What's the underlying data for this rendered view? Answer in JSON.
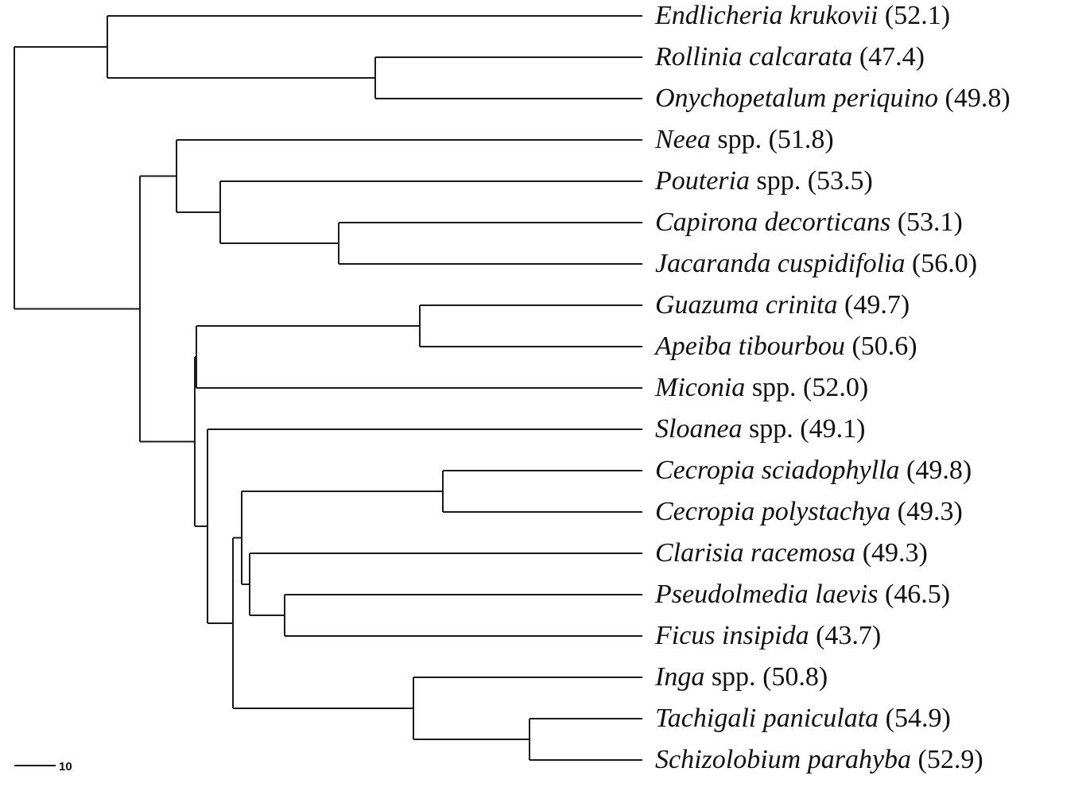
{
  "diagram": {
    "type": "dendrogram",
    "leaves": [
      {
        "id": "endlicheria",
        "name": "Endlicheria krukovii",
        "qualifier": "",
        "value": "(52.1)"
      },
      {
        "id": "rollinia",
        "name": "Rollinia calcarata",
        "qualifier": "",
        "value": "(47.4)"
      },
      {
        "id": "onychopetalum",
        "name": "Onychopetalum periquino",
        "qualifier": "",
        "value": "(49.8)"
      },
      {
        "id": "neea",
        "name": "Neea",
        "qualifier": "spp.",
        "value": "(51.8)"
      },
      {
        "id": "pouteria",
        "name": "Pouteria",
        "qualifier": "spp.",
        "value": "(53.5)"
      },
      {
        "id": "capirona",
        "name": "Capirona decorticans",
        "qualifier": "",
        "value": "(53.1)"
      },
      {
        "id": "jacaranda",
        "name": "Jacaranda cuspidifolia",
        "qualifier": "",
        "value": "(56.0)"
      },
      {
        "id": "guazuma",
        "name": "Guazuma crinita",
        "qualifier": "",
        "value": "(49.7)"
      },
      {
        "id": "apeiba",
        "name": "Apeiba tibourbou",
        "qualifier": "",
        "value": "(50.6)"
      },
      {
        "id": "miconia",
        "name": "Miconia",
        "qualifier": "spp.",
        "value": "(52.0)"
      },
      {
        "id": "sloanea",
        "name": "Sloanea",
        "qualifier": "spp.",
        "value": "(49.1)"
      },
      {
        "id": "cecropia-sciadophylla",
        "name": "Cecropia sciadophylla",
        "qualifier": "",
        "value": "(49.8)"
      },
      {
        "id": "cecropia-polystachya",
        "name": "Cecropia polystachya",
        "qualifier": "",
        "value": "(49.3)"
      },
      {
        "id": "clarisia",
        "name": "Clarisia racemosa",
        "qualifier": "",
        "value": "(49.3)"
      },
      {
        "id": "pseudolmedia",
        "name": "Pseudolmedia laevis",
        "qualifier": "",
        "value": "(46.5)"
      },
      {
        "id": "ficus",
        "name": "Ficus insipida",
        "qualifier": "",
        "value": "(43.7)"
      },
      {
        "id": "inga",
        "name": "Inga",
        "qualifier": "spp.",
        "value": "(50.8)"
      },
      {
        "id": "tachigali",
        "name": "Tachigali paniculata",
        "qualifier": "",
        "value": "(54.9)"
      },
      {
        "id": "schizolobium",
        "name": "Schizolobium parahyba",
        "qualifier": "",
        "value": "(52.9)"
      }
    ],
    "scale_bar": {
      "label": "10"
    },
    "line_color": "#1a1a1a",
    "text_color": "#111111"
  }
}
